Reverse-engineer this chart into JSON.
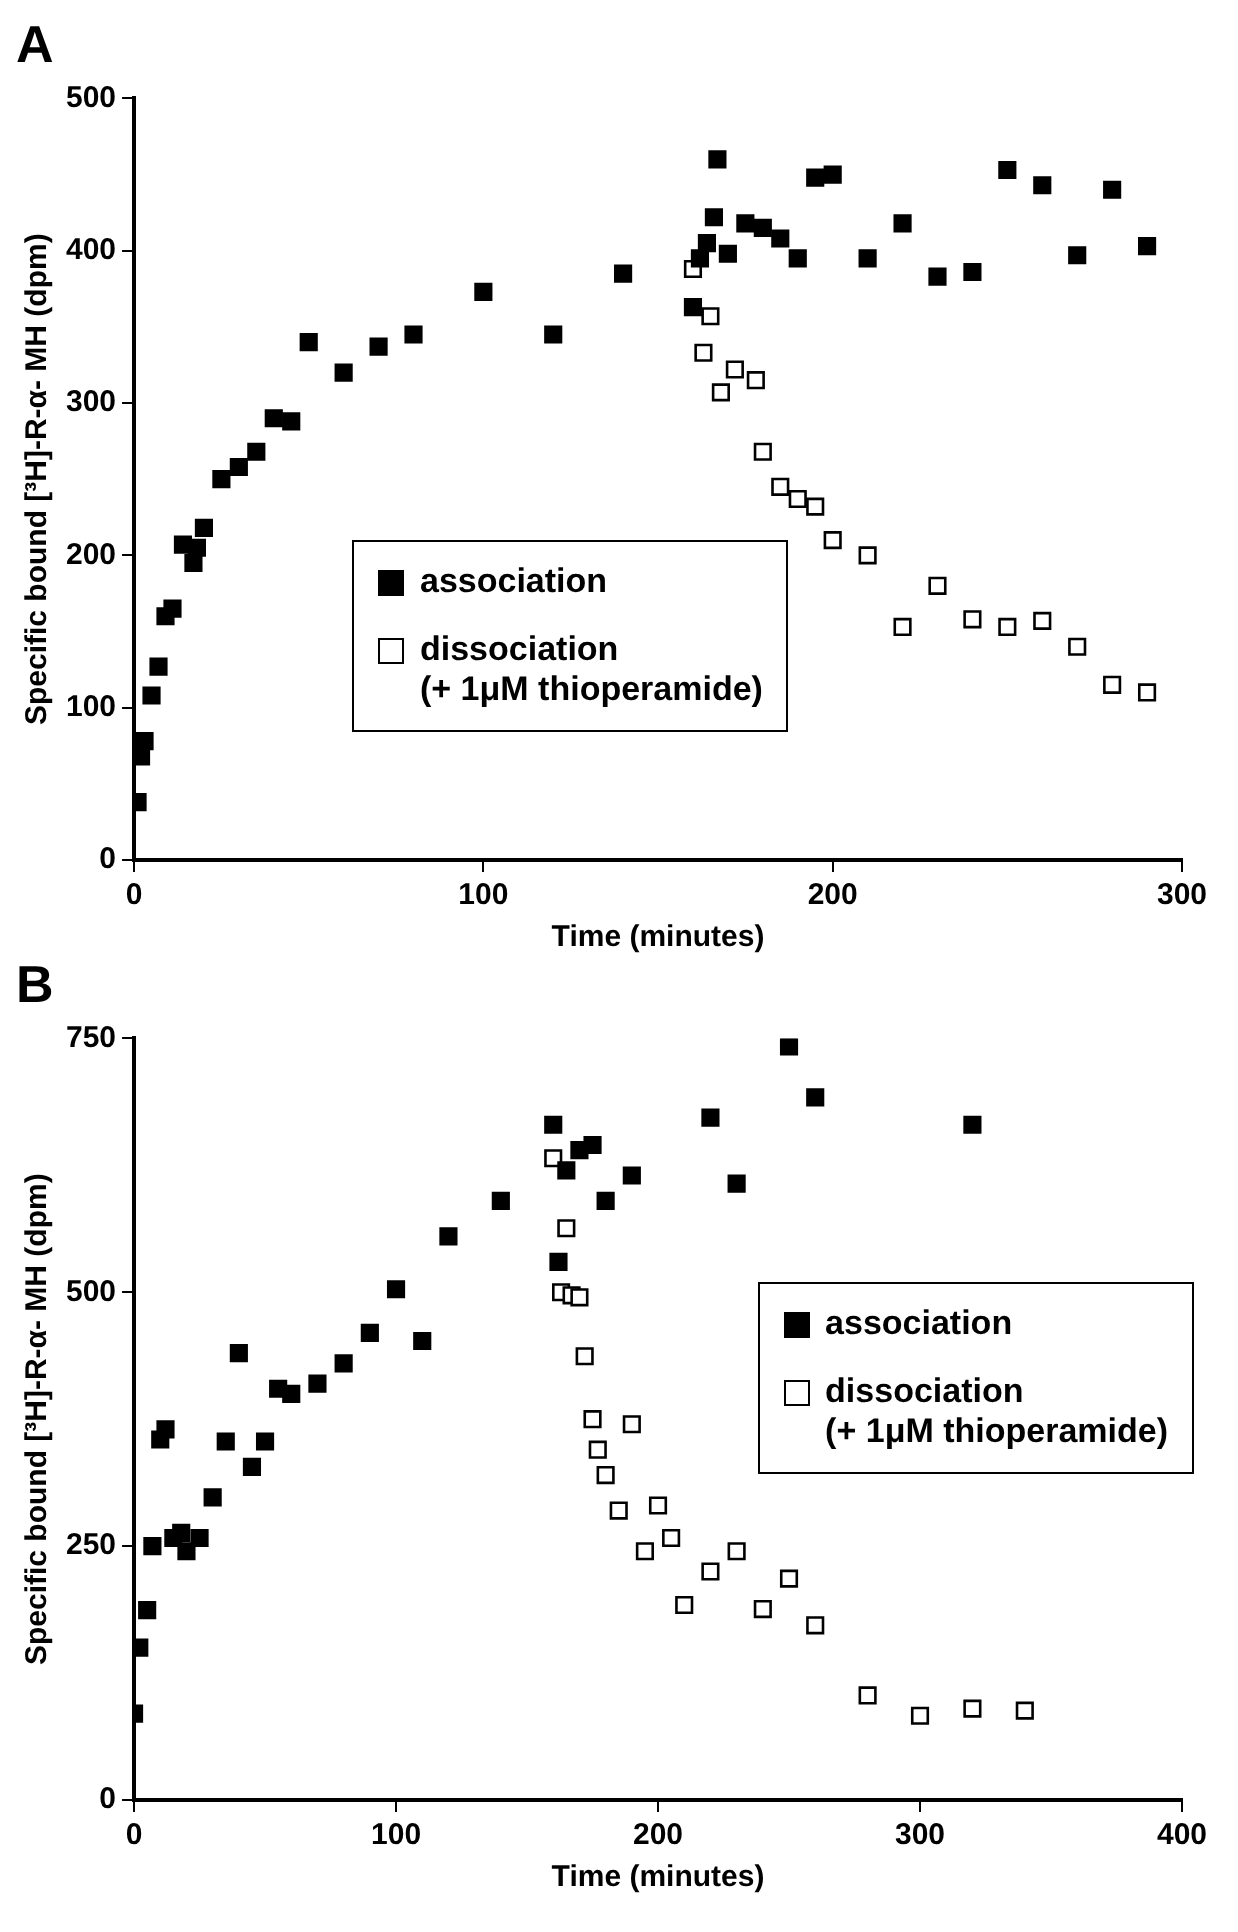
{
  "chart_data": [
    {
      "type": "scatter",
      "title": "A",
      "xlabel": "Time (minutes)",
      "ylabel": "Specific bound [³H]-R-α- MH (dpm)",
      "xlim": [
        0,
        300
      ],
      "xticks": [
        0,
        100,
        200,
        300
      ],
      "ylim": [
        0,
        500
      ],
      "yticks": [
        0,
        100,
        200,
        300,
        400,
        500
      ],
      "grid": false,
      "legend": "bottom",
      "marker": "square",
      "series": [
        {
          "name": "association",
          "color": "#000000",
          "x": [
            1,
            2,
            3,
            5,
            7,
            9,
            11,
            14,
            17,
            18,
            20,
            25,
            30,
            35,
            40,
            45,
            50,
            60,
            70,
            80,
            100,
            120,
            140,
            160,
            162,
            164,
            166,
            167,
            170,
            175,
            180,
            185,
            190,
            195,
            200,
            210,
            220,
            230,
            240,
            250,
            260,
            270,
            280,
            290
          ],
          "values": [
            38,
            68,
            78,
            108,
            127,
            160,
            165,
            207,
            195,
            205,
            218,
            250,
            258,
            268,
            290,
            288,
            340,
            320,
            337,
            345,
            373,
            345,
            385,
            363,
            395,
            405,
            422,
            460,
            398,
            418,
            415,
            408,
            395,
            448,
            450,
            395,
            418,
            383,
            386,
            453,
            443,
            397,
            440,
            403
          ]
        },
        {
          "name": "dissociation\n(+ 1μM thioperamide)",
          "color": "#ffffff",
          "x": [
            160,
            163,
            165,
            168,
            172,
            178,
            180,
            185,
            190,
            195,
            200,
            210,
            220,
            230,
            240,
            250,
            260,
            270,
            280,
            290
          ],
          "values": [
            388,
            333,
            357,
            307,
            322,
            315,
            268,
            245,
            237,
            232,
            210,
            200,
            153,
            180,
            158,
            153,
            157,
            140,
            115,
            110
          ]
        }
      ]
    },
    {
      "type": "scatter",
      "title": "B",
      "xlabel": "Time (minutes)",
      "ylabel": "Specific bound [³H]-R-α- MH (dpm)",
      "xlim": [
        0,
        400
      ],
      "xticks": [
        0,
        100,
        200,
        300,
        400
      ],
      "ylim": [
        0,
        750
      ],
      "yticks": [
        0,
        250,
        500,
        750
      ],
      "grid": false,
      "legend": "right",
      "marker": "square",
      "series": [
        {
          "name": "association",
          "color": "#000000",
          "x": [
            0,
            2,
            5,
            7,
            10,
            12,
            15,
            18,
            20,
            25,
            30,
            35,
            40,
            45,
            50,
            55,
            60,
            70,
            80,
            90,
            100,
            110,
            120,
            140,
            160,
            162,
            165,
            170,
            175,
            180,
            190,
            220,
            230,
            250,
            260,
            320
          ],
          "values": [
            85,
            150,
            187,
            250,
            355,
            365,
            258,
            263,
            245,
            258,
            298,
            353,
            440,
            328,
            353,
            405,
            400,
            410,
            430,
            460,
            503,
            452,
            555,
            590,
            665,
            530,
            620,
            640,
            645,
            590,
            615,
            672,
            607,
            742,
            692,
            665
          ]
        },
        {
          "name": "dissociation\n(+ 1μM thioperamide)",
          "color": "#ffffff",
          "x": [
            160,
            163,
            165,
            167,
            170,
            172,
            175,
            177,
            180,
            185,
            190,
            195,
            200,
            205,
            210,
            220,
            230,
            240,
            250,
            260,
            280,
            300,
            320,
            340
          ],
          "values": [
            632,
            500,
            563,
            497,
            495,
            437,
            375,
            345,
            320,
            285,
            370,
            245,
            290,
            258,
            192,
            225,
            245,
            188,
            218,
            172,
            103,
            83,
            90,
            88
          ]
        }
      ]
    }
  ]
}
